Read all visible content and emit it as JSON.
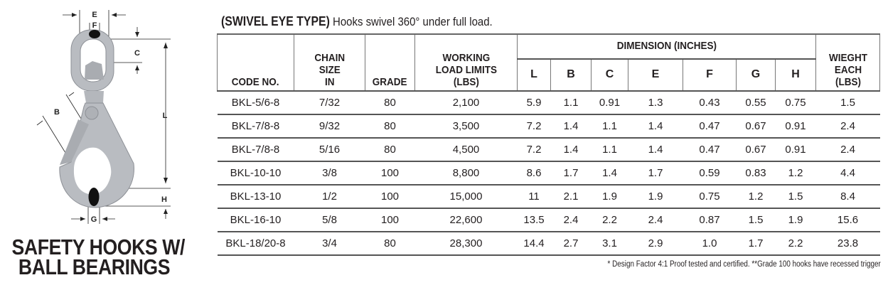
{
  "diagram": {
    "labels": {
      "E": "E",
      "F": "F",
      "C": "C",
      "B": "B",
      "L": "L",
      "H": "H",
      "G": "G"
    },
    "colors": {
      "hook": "#b9bcc1",
      "ball": "#111111"
    }
  },
  "product_title": {
    "line1": "SAFETY HOOKS W/",
    "line2": "BALL BEARINGS"
  },
  "heading": {
    "bold": "(SWIVEL EYE TYPE)",
    "text": " Hooks swivel 360° under full load."
  },
  "table": {
    "headers": {
      "code": "CODE NO.",
      "chain_l1": "CHAIN",
      "chain_l2": "SIZE",
      "chain_l3": "IN",
      "grade": "GRADE",
      "wll_l1": "WORKING",
      "wll_l2": "LOAD LIMITS",
      "wll_l3": "(LBS)",
      "dimension": "DIMENSION (INCHES)",
      "dims": [
        "L",
        "B",
        "C",
        "E",
        "F",
        "G",
        "H"
      ],
      "weight_l1": "WIEGHT",
      "weight_l2": "EACH",
      "weight_l3": "(LBS)"
    },
    "rows": [
      [
        "BKL-5/6-8",
        "7/32",
        "80",
        "2,100",
        "5.9",
        "1.1",
        "0.91",
        "1.3",
        "0.43",
        "0.55",
        "0.75",
        "1.5"
      ],
      [
        "BKL-7/8-8",
        "9/32",
        "80",
        "3,500",
        "7.2",
        "1.4",
        "1.1",
        "1.4",
        "0.47",
        "0.67",
        "0.91",
        "2.4"
      ],
      [
        "BKL-7/8-8",
        "5/16",
        "80",
        "4,500",
        "7.2",
        "1.4",
        "1.1",
        "1.4",
        "0.47",
        "0.67",
        "0.91",
        "2.4"
      ],
      [
        "BKL-10-10",
        "3/8",
        "100",
        "8,800",
        "8.6",
        "1.7",
        "1.4",
        "1.7",
        "0.59",
        "0.83",
        "1.2",
        "4.4"
      ],
      [
        "BKL-13-10",
        "1/2",
        "100",
        "15,000",
        "11",
        "2.1",
        "1.9",
        "1.9",
        "0.75",
        "1.2",
        "1.5",
        "8.4"
      ],
      [
        "BKL-16-10",
        "5/8",
        "100",
        "22,600",
        "13.5",
        "2.4",
        "2.2",
        "2.4",
        "0.87",
        "1.5",
        "1.9",
        "15.6"
      ],
      [
        "BKL-18/20-8",
        "3/4",
        "80",
        "28,300",
        "14.4",
        "2.7",
        "3.1",
        "2.9",
        "1.0",
        "1.7",
        "2.2",
        "23.8"
      ]
    ]
  },
  "footnote": "* Design Factor 4:1 Proof tested and certified. **Grade 100 hooks have recessed trigger"
}
